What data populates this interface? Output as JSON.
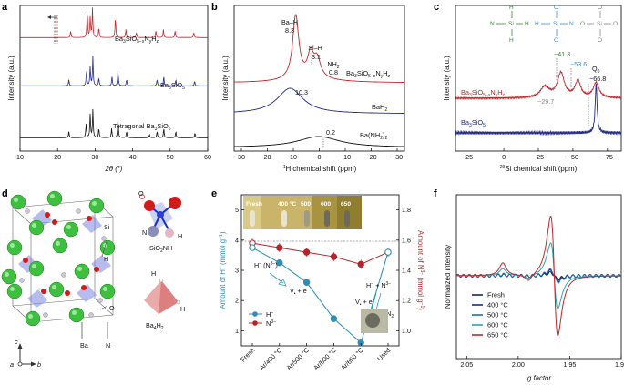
{
  "panels": {
    "a": {
      "label": "a",
      "xlabel": "2θ (°)",
      "ylabel": "Intensity (a.u.)",
      "xticks": [
        "10",
        "20",
        "30",
        "40",
        "50",
        "60"
      ],
      "traces": [
        {
          "name": "Ba3SiO5-xNyHz",
          "name_main": "Ba",
          "sub": "3",
          "mid": "SiO",
          "sub2": "5−x",
          "mid2": "N",
          "sub3": "y",
          "mid3": "H",
          "sub4": "z",
          "color": "#c1272d"
        },
        {
          "name": "Ba3SiO5",
          "color": "#1f2a8a"
        },
        {
          "name": "Tetragonal Ba3SiO5",
          "color": "#111111"
        }
      ]
    },
    "b": {
      "label": "b",
      "xlabel": "1H chemical shift (ppm)",
      "ylabel": "Intensity (a.u.)",
      "xticks": [
        "30",
        "20",
        "10",
        "0",
        "−10",
        "−20",
        "−30"
      ],
      "traces": [
        {
          "name": "Ba3SiO5-xNyHz",
          "color": "#c1272d"
        },
        {
          "name": "BaH2",
          "color": "#1f2a8a"
        },
        {
          "name": "Ba(NH2)2",
          "color": "#111111"
        }
      ],
      "annotations": {
        "bah": "Ba–H",
        "bah_val": "8.3",
        "sih": "Si–H",
        "sih_val": "3.1",
        "nh2": "NH2",
        "nh2_val": "0.8",
        "v103": "10.3",
        "v02": "0.2"
      }
    },
    "c": {
      "label": "c",
      "xlabel": "29Si chemical shift (ppm)",
      "ylabel": "Intensity (a.u.)",
      "xticks": [
        "0",
        "−25",
        "−50",
        "−75"
      ],
      "traces": [
        {
          "name": "Ba3SiO5-xNyHz",
          "color": "#c1272d"
        },
        {
          "name": "Ba3SiO5",
          "color": "#1f2a8a"
        }
      ],
      "annotations": {
        "p413": "−41.3",
        "p536": "−53.6",
        "p668": "−66.8",
        "q0": "Q0",
        "p297": "−29.7"
      },
      "colors": {
        "green": "#2e8b3a",
        "blue": "#3a8fd6",
        "grey": "#8a8a8a"
      }
    },
    "d": {
      "label": "d",
      "labels": {
        "h": "H",
        "si": "Si",
        "o": "O",
        "ba": "Ba",
        "n": "N",
        "o2": "O",
        "n2": "N",
        "si2nh": "SiO2NH",
        "h2": "H",
        "h3": "H",
        "h4": "H",
        "ba4h2": "Ba4H2",
        "ax_c": "c",
        "ax_a": "a",
        "ax_b": "b"
      }
    },
    "e": {
      "label": "e",
      "ylabel_left": "Amount of H− (mmol g−1)",
      "ylabel_right": "Amount of N3− (mmol g−1)",
      "yticks_left": [
        "1",
        "2",
        "3",
        "4",
        "5"
      ],
      "yticks_right": [
        "1.0",
        "1.2",
        "1.4",
        "1.6",
        "1.8"
      ],
      "photo_labels": [
        "Fresh",
        "400 °C",
        "500",
        "600",
        "650"
      ],
      "annotations": {
        "hn": "H− (N3−)",
        "vse": "V• + e−",
        "hn2": "H− + N3−",
        "vse2": "V• + e−",
        "h2n2": "H2 + N2"
      },
      "legend": [
        "H−",
        "N3−"
      ],
      "colors": {
        "h": "#2a8fb8",
        "n": "#b8232a"
      }
    },
    "f": {
      "label": "f",
      "xlabel": "g factor",
      "ylabel": "Normalized intensity",
      "xticks": [
        "2.05",
        "2.00",
        "1.95",
        "1.90"
      ],
      "legend": [
        {
          "name": "Fresh",
          "color": "#152a5c"
        },
        {
          "name": "400 °C",
          "color": "#1f2a8a"
        },
        {
          "name": "500 °C",
          "color": "#1e6fa0"
        },
        {
          "name": "600 °C",
          "color": "#2aa3b0"
        },
        {
          "name": "650 °C",
          "color": "#c1272d"
        }
      ]
    }
  },
  "chart_data": [
    {
      "type": "line",
      "title": "",
      "xlabel": "2θ (°)",
      "ylabel": "Intensity (a.u.)",
      "xlim": [
        10,
        60
      ],
      "series": [
        {
          "name": "Ba3SiO5−xNyHz",
          "peaks": [
            [
              23.5,
              0.2
            ],
            [
              27.9,
              0.8
            ],
            [
              28.7,
              0.6
            ],
            [
              29.3,
              0.9
            ],
            [
              31.0,
              0.3
            ],
            [
              35.4,
              0.6
            ],
            [
              38.2,
              0.25
            ],
            [
              41.0,
              0.15
            ],
            [
              46.2,
              0.2
            ],
            [
              48.2,
              0.25
            ],
            [
              51.3,
              0.2
            ],
            [
              56.3,
              0.15
            ]
          ]
        },
        {
          "name": "Ba3SiO5",
          "peaks": [
            [
              23.0,
              0.2
            ],
            [
              27.7,
              0.5
            ],
            [
              28.7,
              0.6
            ],
            [
              29.4,
              0.95
            ],
            [
              31.0,
              0.25
            ],
            [
              34.5,
              0.3
            ],
            [
              36.1,
              0.5
            ],
            [
              38.4,
              0.2
            ],
            [
              46.5,
              0.2
            ],
            [
              48.3,
              0.3
            ],
            [
              51.5,
              0.2
            ],
            [
              56.5,
              0.15
            ]
          ]
        },
        {
          "name": "Tetragonal Ba3SiO5",
          "peaks": [
            [
              23.0,
              0.2
            ],
            [
              27.6,
              0.45
            ],
            [
              28.7,
              0.75
            ],
            [
              29.4,
              0.9
            ],
            [
              31.0,
              0.3
            ],
            [
              34.4,
              0.3
            ],
            [
              36.1,
              0.6
            ],
            [
              38.4,
              0.2
            ],
            [
              44.5,
              0.1
            ],
            [
              46.5,
              0.2
            ],
            [
              48.3,
              0.3
            ],
            [
              51.5,
              0.2
            ],
            [
              56.6,
              0.15
            ]
          ]
        }
      ]
    },
    {
      "type": "line",
      "xlabel": "1H chemical shift (ppm)",
      "ylabel": "Intensity (a.u.)",
      "xlim": [
        30,
        -30
      ],
      "series": [
        {
          "name": "Ba3SiO5−xNyHz",
          "peaks": [
            [
              8.3,
              1.0
            ],
            [
              3.1,
              0.35
            ],
            [
              0.8,
              0.3
            ]
          ]
        },
        {
          "name": "BaH2",
          "peaks": [
            [
              10.3,
              1.0
            ]
          ]
        },
        {
          "name": "Ba(NH2)2",
          "peaks": [
            [
              0.2,
              1.0
            ]
          ]
        }
      ]
    },
    {
      "type": "line",
      "xlabel": "29Si chemical shift (ppm)",
      "ylabel": "Intensity (a.u.)",
      "xlim": [
        35,
        -85
      ],
      "series": [
        {
          "name": "Ba3SiO5−xNyHz",
          "peaks": [
            [
              -29.7,
              0.4
            ],
            [
              -41.3,
              0.9
            ],
            [
              -53.6,
              0.6
            ],
            [
              -66.8,
              0.55
            ]
          ]
        },
        {
          "name": "Ba3SiO5",
          "peaks": [
            [
              -66.8,
              1.0
            ]
          ]
        }
      ]
    },
    {
      "type": "line",
      "categories": [
        "Fresh",
        "Ar/400 °C",
        "Ar/500 °C",
        "Ar/600 °C",
        "Ar/650 °C",
        "Used"
      ],
      "series": [
        {
          "name": "H−",
          "axis": "left",
          "values": [
            3.75,
            3.25,
            2.6,
            1.4,
            0.6,
            3.6
          ],
          "errors": [
            0.05,
            0.05,
            0.05,
            0.05,
            0.05,
            0.1
          ]
        },
        {
          "name": "N3−",
          "axis": "right",
          "values": [
            1.58,
            1.55,
            1.52,
            1.49,
            1.44,
            1.52
          ],
          "errors": [
            0.03,
            0.03,
            0.03,
            0.03,
            0.03,
            0.03
          ]
        }
      ],
      "ylim_left": [
        0.5,
        5.5
      ],
      "ylim_right": [
        0.9,
        1.9
      ]
    },
    {
      "type": "line",
      "xlabel": "g factor",
      "ylabel": "Normalized intensity",
      "xlim": [
        2.06,
        1.9
      ],
      "series": [
        {
          "name": "Fresh",
          "amp": 0.05
        },
        {
          "name": "400 °C",
          "amp": 0.08
        },
        {
          "name": "500 °C",
          "amp": 0.1
        },
        {
          "name": "600 °C",
          "amp": 0.55
        },
        {
          "name": "650 °C",
          "amp": 1.0
        }
      ]
    }
  ]
}
